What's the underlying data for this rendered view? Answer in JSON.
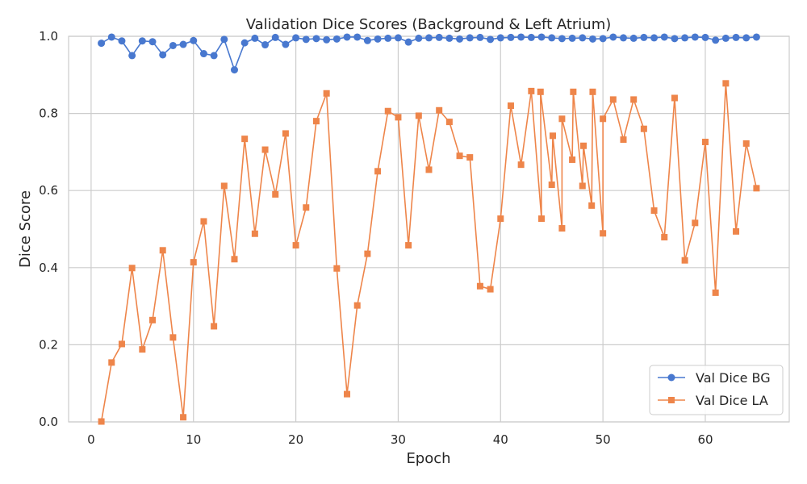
{
  "chart_data": {
    "type": "line",
    "title": "Validation Dice Scores (Background & Left Atrium)",
    "xlabel": "Epoch",
    "ylabel": "Dice Score",
    "xlim": [
      -2.2,
      68.2
    ],
    "ylim": [
      0.0,
      1.0
    ],
    "xticks": [
      0,
      10,
      20,
      30,
      40,
      50,
      60
    ],
    "yticks": [
      0.0,
      0.2,
      0.4,
      0.6,
      0.8,
      1.0
    ],
    "xtick_labels": [
      "0",
      "10",
      "20",
      "30",
      "40",
      "50",
      "60"
    ],
    "ytick_labels": [
      "0.0",
      "0.2",
      "0.4",
      "0.6",
      "0.8",
      "1.0"
    ],
    "grid": true,
    "legend_position": "lower-right",
    "series": [
      {
        "name": "Val Dice BG",
        "color": "#4878cf",
        "marker": "circle",
        "points": [
          [
            1,
            0.982
          ],
          [
            2,
            0.998
          ],
          [
            3,
            0.988
          ],
          [
            4,
            0.95
          ],
          [
            5,
            0.988
          ],
          [
            6,
            0.986
          ],
          [
            7,
            0.952
          ],
          [
            8,
            0.976
          ],
          [
            9,
            0.979
          ],
          [
            10,
            0.989
          ],
          [
            11,
            0.955
          ],
          [
            12,
            0.95
          ],
          [
            13,
            0.992
          ],
          [
            14,
            0.913
          ],
          [
            15,
            0.983
          ],
          [
            16,
            0.995
          ],
          [
            17,
            0.978
          ],
          [
            18,
            0.997
          ],
          [
            19,
            0.979
          ],
          [
            20,
            0.996
          ],
          [
            21,
            0.992
          ],
          [
            22,
            0.994
          ],
          [
            23,
            0.991
          ],
          [
            24,
            0.993
          ],
          [
            25,
            0.998
          ],
          [
            26,
            0.998
          ],
          [
            27,
            0.989
          ],
          [
            28,
            0.993
          ],
          [
            29,
            0.995
          ],
          [
            30,
            0.996
          ],
          [
            31,
            0.985
          ],
          [
            32,
            0.995
          ],
          [
            33,
            0.996
          ],
          [
            34,
            0.997
          ],
          [
            35,
            0.995
          ],
          [
            36,
            0.993
          ],
          [
            37,
            0.996
          ],
          [
            38,
            0.997
          ],
          [
            39,
            0.992
          ],
          [
            40,
            0.996
          ],
          [
            41,
            0.997
          ],
          [
            42,
            0.998
          ],
          [
            43,
            0.997
          ],
          [
            44,
            0.998
          ],
          [
            45,
            0.996
          ],
          [
            46,
            0.994
          ],
          [
            47,
            0.995
          ],
          [
            48,
            0.996
          ],
          [
            49,
            0.993
          ],
          [
            50,
            0.994
          ],
          [
            51,
            0.998
          ],
          [
            52,
            0.996
          ],
          [
            53,
            0.995
          ],
          [
            54,
            0.997
          ],
          [
            55,
            0.996
          ],
          [
            56,
            0.998
          ],
          [
            57,
            0.994
          ],
          [
            58,
            0.996
          ],
          [
            59,
            0.998
          ],
          [
            60,
            0.997
          ],
          [
            61,
            0.99
          ],
          [
            62,
            0.995
          ],
          [
            63,
            0.997
          ],
          [
            64,
            0.996
          ],
          [
            65,
            0.998
          ]
        ]
      },
      {
        "name": "Val Dice LA",
        "color": "#ee854a",
        "marker": "square",
        "points": [
          [
            1,
            0.001
          ],
          [
            2,
            0.154
          ],
          [
            3,
            0.202
          ],
          [
            4,
            0.399
          ],
          [
            5,
            0.188
          ],
          [
            6,
            0.264
          ],
          [
            7,
            0.445
          ],
          [
            8,
            0.219
          ],
          [
            9,
            0.012
          ],
          [
            10,
            0.414
          ],
          [
            11,
            0.52
          ],
          [
            12,
            0.248
          ],
          [
            13,
            0.612
          ],
          [
            14,
            0.422
          ],
          [
            15,
            0.734
          ],
          [
            16,
            0.488
          ],
          [
            17,
            0.706
          ],
          [
            18,
            0.59
          ],
          [
            19,
            0.748
          ],
          [
            20,
            0.458
          ],
          [
            21,
            0.556
          ],
          [
            22,
            0.78
          ],
          [
            23,
            0.852
          ],
          [
            24,
            0.398
          ],
          [
            25,
            0.072
          ],
          [
            26,
            0.302
          ],
          [
            27,
            0.436
          ],
          [
            28,
            0.65
          ],
          [
            29,
            0.806
          ],
          [
            30,
            0.79
          ],
          [
            31,
            0.458
          ],
          [
            32,
            0.794
          ],
          [
            33,
            0.654
          ],
          [
            34,
            0.808
          ],
          [
            35,
            0.778
          ],
          [
            36,
            0.69
          ],
          [
            37,
            0.686
          ],
          [
            38,
            0.352
          ],
          [
            39,
            0.344
          ],
          [
            40,
            0.527
          ],
          [
            41,
            0.82
          ],
          [
            42,
            0.667
          ],
          [
            43,
            0.858
          ],
          [
            44,
            0.527
          ],
          [
            43.9,
            0.856
          ],
          [
            45,
            0.615
          ],
          [
            45.1,
            0.742
          ],
          [
            46,
            0.502
          ],
          [
            46,
            0.786
          ],
          [
            47,
            0.68
          ],
          [
            47.1,
            0.856
          ],
          [
            48,
            0.612
          ],
          [
            48.1,
            0.716
          ],
          [
            48.9,
            0.561
          ],
          [
            49,
            0.856
          ],
          [
            50,
            0.489
          ],
          [
            50,
            0.786
          ],
          [
            51,
            0.836
          ],
          [
            52,
            0.732
          ],
          [
            53,
            0.836
          ],
          [
            54,
            0.76
          ],
          [
            55,
            0.548
          ],
          [
            56,
            0.479
          ],
          [
            57,
            0.84
          ],
          [
            58,
            0.419
          ],
          [
            59,
            0.516
          ],
          [
            60,
            0.726
          ],
          [
            61,
            0.335
          ],
          [
            62,
            0.878
          ],
          [
            63,
            0.494
          ],
          [
            64,
            0.722
          ],
          [
            65,
            0.606
          ]
        ]
      }
    ]
  }
}
